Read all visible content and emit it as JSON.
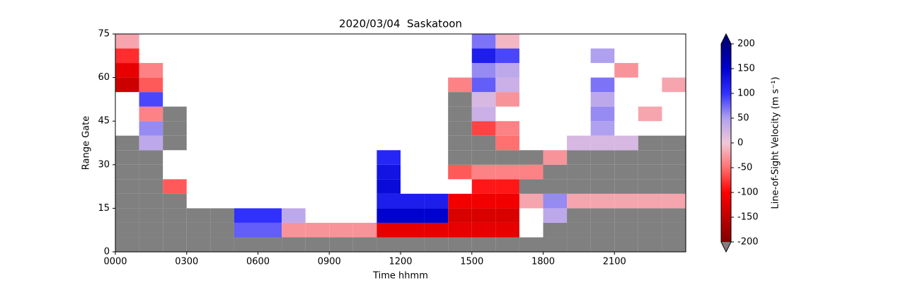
{
  "chart_data": {
    "type": "heatmap",
    "title": "2020/03/04  Saskatoon",
    "x_label": "Time hhmm",
    "y_label": "Range Gate",
    "colorbar_label": "Line-of-Sight Velocity (m s⁻¹)",
    "x_bins": [
      0,
      1,
      2,
      3,
      4,
      5,
      6,
      7,
      8,
      9,
      10,
      11,
      12,
      13,
      14,
      15,
      16,
      17,
      18,
      19,
      20,
      21,
      22,
      23,
      24
    ],
    "y_bins": [
      0,
      5,
      10,
      15,
      20,
      25,
      30,
      35,
      40,
      45,
      50,
      55,
      60,
      65,
      70,
      75
    ],
    "xlim": [
      0,
      24
    ],
    "ylim": [
      0,
      75
    ],
    "xticks": [
      {
        "value": 0,
        "label": "0000"
      },
      {
        "value": 3,
        "label": "0300"
      },
      {
        "value": 6,
        "label": "0600"
      },
      {
        "value": 9,
        "label": "0900"
      },
      {
        "value": 12,
        "label": "1200"
      },
      {
        "value": 15,
        "label": "1500"
      },
      {
        "value": 18,
        "label": "1800"
      },
      {
        "value": 21,
        "label": "2100"
      }
    ],
    "yticks": [
      0,
      15,
      30,
      45,
      60,
      75
    ],
    "clim": [
      -200,
      200
    ],
    "cticks": [
      -200,
      -150,
      -100,
      -50,
      0,
      50,
      100,
      150,
      200
    ],
    "colormap": [
      "#800000",
      "#c00000",
      "#ff0000",
      "#ff7070",
      "#f0c8d8",
      "#b0a0f0",
      "#3030ff",
      "#0000d0",
      "#000080"
    ],
    "ground_scatter_color": "#808080",
    "values": [
      [
        null,
        null,
        null,
        null,
        null,
        null,
        null,
        null,
        null,
        null,
        null,
        null,
        null,
        null,
        null,
        null,
        null,
        null,
        null,
        null,
        null,
        null,
        null,
        null
      ],
      [
        null,
        null,
        null,
        null,
        null,
        80,
        80,
        -30,
        -30,
        -30,
        -30,
        -120,
        -120,
        -120,
        -120,
        -120,
        -120,
        null,
        null,
        null,
        null,
        null,
        null,
        null
      ],
      [
        null,
        null,
        null,
        null,
        null,
        100,
        100,
        40,
        null,
        null,
        null,
        150,
        150,
        150,
        -130,
        -130,
        -130,
        null,
        40,
        null,
        null,
        null,
        null,
        null
      ],
      [
        null,
        null,
        null,
        null,
        null,
        null,
        null,
        null,
        null,
        null,
        null,
        120,
        120,
        120,
        -110,
        -110,
        -110,
        -20,
        60,
        -20,
        -20,
        -20,
        -20,
        -20
      ],
      [
        null,
        null,
        -60,
        null,
        null,
        null,
        null,
        null,
        null,
        null,
        null,
        140,
        null,
        null,
        null,
        -90,
        -90,
        null,
        null,
        null,
        null,
        null,
        null,
        null
      ],
      [
        null,
        null,
        null,
        null,
        null,
        null,
        null,
        null,
        null,
        null,
        null,
        130,
        null,
        null,
        -60,
        -40,
        -40,
        -40,
        null,
        null,
        null,
        null,
        null,
        null
      ],
      [
        null,
        null,
        null,
        null,
        null,
        null,
        null,
        null,
        null,
        null,
        null,
        110,
        null,
        null,
        null,
        null,
        null,
        null,
        -30,
        null,
        null,
        null,
        null,
        null
      ],
      [
        null,
        40,
        null,
        null,
        null,
        null,
        null,
        null,
        null,
        null,
        null,
        null,
        null,
        null,
        null,
        null,
        -50,
        null,
        null,
        20,
        20,
        20,
        null,
        null
      ],
      [
        null,
        60,
        null,
        null,
        null,
        null,
        null,
        null,
        null,
        null,
        null,
        null,
        null,
        null,
        null,
        -70,
        -40,
        null,
        null,
        null,
        50,
        null,
        null,
        null
      ],
      [
        null,
        -40,
        null,
        null,
        null,
        null,
        null,
        null,
        null,
        null,
        null,
        null,
        null,
        null,
        null,
        30,
        null,
        null,
        null,
        null,
        60,
        null,
        -20,
        null
      ],
      [
        null,
        90,
        null,
        null,
        null,
        null,
        null,
        null,
        null,
        null,
        null,
        null,
        null,
        null,
        null,
        20,
        -30,
        null,
        null,
        null,
        40,
        null,
        null,
        null
      ],
      [
        -140,
        -60,
        null,
        null,
        null,
        null,
        null,
        null,
        null,
        null,
        null,
        null,
        null,
        null,
        -40,
        80,
        30,
        null,
        null,
        null,
        70,
        null,
        null,
        -20
      ],
      [
        -120,
        -40,
        null,
        null,
        null,
        null,
        null,
        null,
        null,
        null,
        null,
        null,
        null,
        null,
        null,
        60,
        40,
        null,
        null,
        null,
        null,
        -30,
        null,
        null
      ],
      [
        -80,
        null,
        null,
        null,
        null,
        null,
        null,
        null,
        null,
        null,
        null,
        null,
        null,
        null,
        null,
        120,
        90,
        null,
        null,
        null,
        50,
        null,
        null,
        null
      ],
      [
        -20,
        null,
        null,
        null,
        null,
        null,
        null,
        null,
        null,
        null,
        null,
        null,
        null,
        null,
        null,
        70,
        -10,
        null,
        null,
        null,
        null,
        null,
        null,
        null
      ]
    ],
    "ground_scatter": [
      [
        1,
        1,
        1,
        1,
        1,
        1,
        1,
        1,
        1,
        1,
        1,
        1,
        1,
        1,
        1,
        1,
        1,
        1,
        1,
        1,
        1,
        1,
        1,
        1
      ],
      [
        1,
        1,
        1,
        1,
        1,
        0,
        0,
        0,
        0,
        0,
        0,
        0,
        0,
        0,
        0,
        0,
        0,
        0,
        1,
        1,
        1,
        1,
        1,
        1
      ],
      [
        1,
        1,
        1,
        1,
        1,
        0,
        0,
        0,
        0,
        0,
        0,
        0,
        0,
        0,
        0,
        0,
        0,
        0,
        0,
        1,
        1,
        1,
        1,
        1
      ],
      [
        1,
        1,
        1,
        0,
        0,
        0,
        0,
        0,
        0,
        0,
        0,
        0,
        0,
        0,
        0,
        0,
        0,
        0,
        0,
        0,
        0,
        0,
        0,
        0
      ],
      [
        1,
        1,
        0,
        0,
        0,
        0,
        0,
        0,
        0,
        0,
        0,
        0,
        0,
        0,
        0,
        0,
        0,
        1,
        1,
        1,
        1,
        1,
        1,
        1
      ],
      [
        1,
        1,
        0,
        0,
        0,
        0,
        0,
        0,
        0,
        0,
        0,
        0,
        0,
        0,
        0,
        0,
        0,
        0,
        1,
        1,
        1,
        1,
        1,
        1
      ],
      [
        1,
        1,
        0,
        0,
        0,
        0,
        0,
        0,
        0,
        0,
        0,
        0,
        0,
        0,
        1,
        1,
        1,
        1,
        0,
        1,
        1,
        1,
        1,
        1
      ],
      [
        1,
        0,
        1,
        0,
        0,
        0,
        0,
        0,
        0,
        0,
        0,
        0,
        0,
        0,
        1,
        1,
        0,
        0,
        0,
        0,
        0,
        0,
        1,
        1
      ],
      [
        0,
        0,
        1,
        0,
        0,
        0,
        0,
        0,
        0,
        0,
        0,
        0,
        0,
        0,
        1,
        0,
        0,
        0,
        0,
        0,
        0,
        0,
        0,
        0
      ],
      [
        0,
        0,
        1,
        0,
        0,
        0,
        0,
        0,
        0,
        0,
        0,
        0,
        0,
        0,
        1,
        0,
        0,
        0,
        0,
        0,
        0,
        0,
        0,
        0
      ],
      [
        0,
        0,
        0,
        0,
        0,
        0,
        0,
        0,
        0,
        0,
        0,
        0,
        0,
        0,
        1,
        0,
        0,
        0,
        0,
        0,
        0,
        0,
        0,
        0
      ],
      [
        0,
        0,
        0,
        0,
        0,
        0,
        0,
        0,
        0,
        0,
        0,
        0,
        0,
        0,
        0,
        0,
        0,
        0,
        0,
        0,
        0,
        0,
        0,
        0
      ],
      [
        0,
        0,
        0,
        0,
        0,
        0,
        0,
        0,
        0,
        0,
        0,
        0,
        0,
        0,
        0,
        0,
        0,
        0,
        0,
        0,
        0,
        0,
        0,
        0
      ],
      [
        0,
        0,
        0,
        0,
        0,
        0,
        0,
        0,
        0,
        0,
        0,
        0,
        0,
        0,
        0,
        0,
        0,
        0,
        0,
        0,
        0,
        0,
        0,
        0
      ],
      [
        0,
        0,
        0,
        0,
        0,
        0,
        0,
        0,
        0,
        0,
        0,
        0,
        0,
        0,
        0,
        0,
        0,
        0,
        0,
        0,
        0,
        0,
        0,
        0
      ]
    ]
  }
}
